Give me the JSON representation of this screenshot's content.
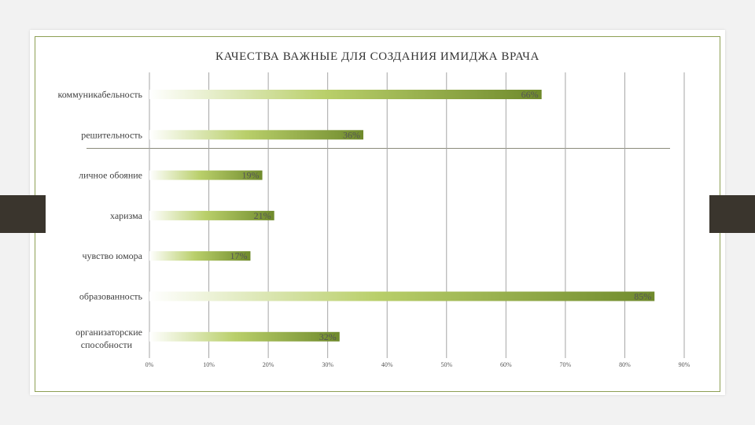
{
  "chart_data": {
    "type": "bar",
    "orientation": "horizontal",
    "title": "КАЧЕСТВА ВАЖНЫЕ ДЛЯ СОЗДАНИЯ ИМИДЖА ВРАЧА",
    "categories": [
      "коммуникабельность",
      "решительность",
      "личное обояние",
      "харизма",
      "чувство юмора",
      "образованность",
      "организаторские способности"
    ],
    "values": [
      66,
      36,
      19,
      21,
      17,
      85,
      32
    ],
    "value_labels": [
      "66%",
      "36%",
      "19%",
      "21%",
      "17%",
      "85%",
      "32%"
    ],
    "x_ticks": [
      "0%",
      "10%",
      "20%",
      "30%",
      "40%",
      "50%",
      "60%",
      "70%",
      "80%",
      "90%"
    ],
    "xlim": [
      0,
      90
    ],
    "grid": "vertical",
    "legend": "none",
    "colors": {
      "bar_start": "#ffffff",
      "bar_mid": "#b9cf6a",
      "bar_end": "#6f8a2c",
      "grid": "#a6a6a6"
    }
  }
}
